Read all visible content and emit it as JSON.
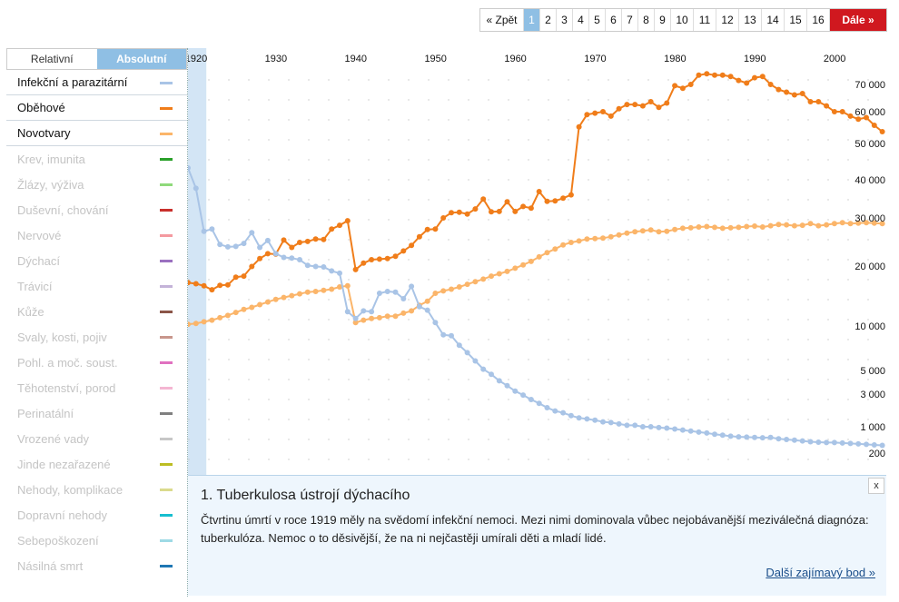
{
  "pager": {
    "back": "« Zpět",
    "pages": [
      "1",
      "2",
      "3",
      "4",
      "5",
      "6",
      "7",
      "8",
      "9",
      "10",
      "11",
      "12",
      "13",
      "14",
      "15",
      "16"
    ],
    "active": "1",
    "next": "Dále »"
  },
  "tabs": {
    "relative": "Relativní",
    "absolute": "Absolutní"
  },
  "categories": [
    {
      "label": "Infekční a parazitární",
      "color": "#a9c4e6",
      "active": true
    },
    {
      "label": "Oběhové",
      "color": "#f07d1a",
      "active": true
    },
    {
      "label": "Novotvary",
      "color": "#fbb56a",
      "active": true
    },
    {
      "label": "Krev, imunita",
      "color": "#2aa02a",
      "active": false
    },
    {
      "label": "Žlázy, výživa",
      "color": "#8fd97b",
      "active": false
    },
    {
      "label": "Duševní, chování",
      "color": "#c9302c",
      "active": false
    },
    {
      "label": "Nervové",
      "color": "#f49aa0",
      "active": false
    },
    {
      "label": "Dýchací",
      "color": "#9a70c0",
      "active": false
    },
    {
      "label": "Trávicí",
      "color": "#c4b3d8",
      "active": false
    },
    {
      "label": "Kůže",
      "color": "#8b5548",
      "active": false
    },
    {
      "label": "Svaly, kosti, pojiv",
      "color": "#c8968c",
      "active": false
    },
    {
      "label": "Pohl. a moč. soust.",
      "color": "#e071c0",
      "active": false
    },
    {
      "label": "Těhotenství, porod",
      "color": "#f4b6d2",
      "active": false
    },
    {
      "label": "Perinatální",
      "color": "#808080",
      "active": false
    },
    {
      "label": "Vrozené vady",
      "color": "#c7c7c7",
      "active": false
    },
    {
      "label": "Jinde nezařazené",
      "color": "#bcbd22",
      "active": false
    },
    {
      "label": "Nehody, komplikace",
      "color": "#dbdb8d",
      "active": false
    },
    {
      "label": "Dopravní nehody",
      "color": "#17becf",
      "active": false
    },
    {
      "label": "Sebepoškození",
      "color": "#9edae5",
      "active": false
    },
    {
      "label": "Násilná smrt",
      "color": "#1f77b4",
      "active": false
    }
  ],
  "chart_data": {
    "type": "line",
    "x_ticks": [
      1920,
      1930,
      1940,
      1950,
      1960,
      1970,
      1980,
      1990,
      2000
    ],
    "x_tick_labels": [
      "1920",
      "1930",
      "1940",
      "1950",
      "1960",
      "1970",
      "1980",
      "1990",
      "2000"
    ],
    "xlim": [
      1919,
      2006
    ],
    "y_tick_values": [
      70000,
      60000,
      50000,
      40000,
      30000,
      20000,
      10000,
      5000,
      3000,
      1000,
      200
    ],
    "y_tick_labels": [
      "70 000",
      "60 000",
      "50 000",
      "40 000",
      "30 000",
      "20 000",
      "10 000",
      "5 000",
      "3 000",
      "1 000",
      "200"
    ],
    "highlight_year": 1919,
    "series": [
      {
        "name": "Oběhové",
        "color": "#f07d1a",
        "x": [
          1919,
          1920,
          1921,
          1922,
          1923,
          1924,
          1925,
          1926,
          1927,
          1928,
          1929,
          1930,
          1931,
          1932,
          1933,
          1934,
          1935,
          1936,
          1937,
          1938,
          1939,
          1940,
          1941,
          1942,
          1943,
          1944,
          1945,
          1946,
          1947,
          1948,
          1949,
          1950,
          1951,
          1952,
          1953,
          1954,
          1955,
          1956,
          1957,
          1958,
          1959,
          1960,
          1961,
          1962,
          1963,
          1964,
          1965,
          1966,
          1967,
          1968,
          1969,
          1970,
          1971,
          1972,
          1973,
          1974,
          1975,
          1976,
          1977,
          1978,
          1979,
          1980,
          1981,
          1982,
          1983,
          1984,
          1985,
          1986,
          1987,
          1988,
          1989,
          1990,
          1991,
          1992,
          1993,
          1994,
          1995,
          1996,
          1997,
          1998,
          1999,
          2000,
          2001,
          2002,
          2003,
          2004,
          2005,
          2006
        ],
        "y": [
          16500,
          16300,
          15900,
          15200,
          16000,
          16100,
          17600,
          17800,
          19900,
          21300,
          22200,
          22100,
          24900,
          23400,
          24400,
          24600,
          25100,
          25000,
          27300,
          28200,
          29300,
          19200,
          20500,
          21100,
          21200,
          21300,
          21700,
          22700,
          23800,
          25600,
          27200,
          27300,
          30000,
          31200,
          31300,
          30900,
          32100,
          34600,
          31400,
          31500,
          33900,
          31500,
          32700,
          32300,
          36600,
          34000,
          34100,
          34800,
          35700,
          55000,
          59000,
          59500,
          60000,
          58500,
          61000,
          62500,
          62500,
          62000,
          63500,
          61500,
          63000,
          69500,
          68500,
          70000,
          73500,
          74000,
          73500,
          73500,
          73000,
          71500,
          70500,
          72500,
          73000,
          70000,
          68000,
          67000,
          66000,
          66500,
          63500,
          63500,
          62000,
          60000,
          60000,
          58500,
          57500,
          58000,
          55500,
          53500
        ]
      },
      {
        "name": "Novotvary",
        "color": "#fbb56a",
        "x": [
          1919,
          1920,
          1921,
          1922,
          1923,
          1924,
          1925,
          1926,
          1927,
          1928,
          1929,
          1930,
          1931,
          1932,
          1933,
          1934,
          1935,
          1936,
          1937,
          1938,
          1939,
          1940,
          1941,
          1942,
          1943,
          1944,
          1945,
          1946,
          1947,
          1948,
          1949,
          1950,
          1951,
          1952,
          1953,
          1954,
          1955,
          1956,
          1957,
          1958,
          1959,
          1960,
          1961,
          1962,
          1963,
          1964,
          1965,
          1966,
          1967,
          1968,
          1969,
          1970,
          1971,
          1972,
          1973,
          1974,
          1975,
          1976,
          1977,
          1978,
          1979,
          1980,
          1981,
          1982,
          1983,
          1984,
          1985,
          1986,
          1987,
          1988,
          1989,
          1990,
          1991,
          1992,
          1993,
          1994,
          1995,
          1996,
          1997,
          1998,
          1999,
          2000,
          2001,
          2002,
          2003,
          2004,
          2005,
          2006
        ],
        "y": [
          10200,
          10300,
          10500,
          10700,
          11000,
          11300,
          11700,
          12100,
          12400,
          12800,
          13200,
          13600,
          13900,
          14200,
          14500,
          14800,
          14900,
          15100,
          15300,
          15700,
          15900,
          10400,
          10700,
          10900,
          11000,
          11200,
          11200,
          11600,
          11900,
          12700,
          13300,
          14600,
          15000,
          15300,
          15700,
          16200,
          16700,
          17200,
          17800,
          18300,
          18800,
          19500,
          20200,
          20800,
          21600,
          22400,
          23100,
          23900,
          24400,
          24700,
          25100,
          25200,
          25300,
          25600,
          26000,
          26400,
          26700,
          26900,
          27100,
          26700,
          26800,
          27200,
          27500,
          27600,
          27800,
          27900,
          27700,
          27500,
          27600,
          27700,
          27900,
          28000,
          27800,
          28100,
          28400,
          28300,
          28100,
          28200,
          28600,
          28100,
          28300,
          28600,
          28800,
          28600,
          28700,
          28800,
          28700,
          28600
        ]
      },
      {
        "name": "Infekční a parazitární",
        "color": "#a9c4e6",
        "x": [
          1919,
          1920,
          1921,
          1922,
          1923,
          1924,
          1925,
          1926,
          1927,
          1928,
          1929,
          1930,
          1931,
          1932,
          1933,
          1934,
          1935,
          1936,
          1937,
          1938,
          1939,
          1940,
          1941,
          1942,
          1943,
          1944,
          1945,
          1946,
          1947,
          1948,
          1949,
          1950,
          1951,
          1952,
          1953,
          1954,
          1955,
          1956,
          1957,
          1958,
          1959,
          1960,
          1961,
          1962,
          1963,
          1964,
          1965,
          1966,
          1967,
          1968,
          1969,
          1970,
          1971,
          1972,
          1973,
          1974,
          1975,
          1976,
          1977,
          1978,
          1979,
          1980,
          1981,
          1982,
          1983,
          1984,
          1985,
          1986,
          1987,
          1988,
          1989,
          1990,
          1991,
          1992,
          1993,
          1994,
          1995,
          1996,
          1997,
          1998,
          1999,
          2000,
          2001,
          2002,
          2003,
          2004,
          2005,
          2006
        ],
        "y": [
          43000,
          37500,
          26800,
          27300,
          24000,
          23500,
          23600,
          24200,
          26500,
          23400,
          24800,
          22200,
          21500,
          21400,
          21100,
          20100,
          19900,
          19800,
          18900,
          18400,
          11800,
          10900,
          11900,
          11800,
          14600,
          14900,
          14800,
          13700,
          15800,
          12500,
          12000,
          10400,
          8700,
          8600,
          7400,
          6600,
          5800,
          5100,
          4600,
          4000,
          3600,
          3200,
          2900,
          2500,
          2200,
          1900,
          1700,
          1600,
          1450,
          1350,
          1300,
          1250,
          1180,
          1150,
          1100,
          1050,
          1050,
          1000,
          1000,
          950,
          920,
          870,
          820,
          770,
          720,
          680,
          630,
          600,
          560,
          540,
          530,
          520,
          510,
          520,
          480,
          460,
          440,
          420,
          400,
          390,
          380,
          380,
          370,
          360,
          350,
          340,
          330,
          320
        ]
      }
    ]
  },
  "info": {
    "title": "1. Tuberkulosa ústrojí dýchacího",
    "text": "Čtvrtinu úmrtí v roce 1919 měly na svědomí infekční nemoci. Mezi nimi dominovala vůbec nejobávanější meziválečná diagnóza: tuberkulóza. Nemoc o to děsivější, že na ni nejčastěji umírali děti a mladí lidé.",
    "close": "x",
    "more": "Další zajímavý bod »"
  }
}
